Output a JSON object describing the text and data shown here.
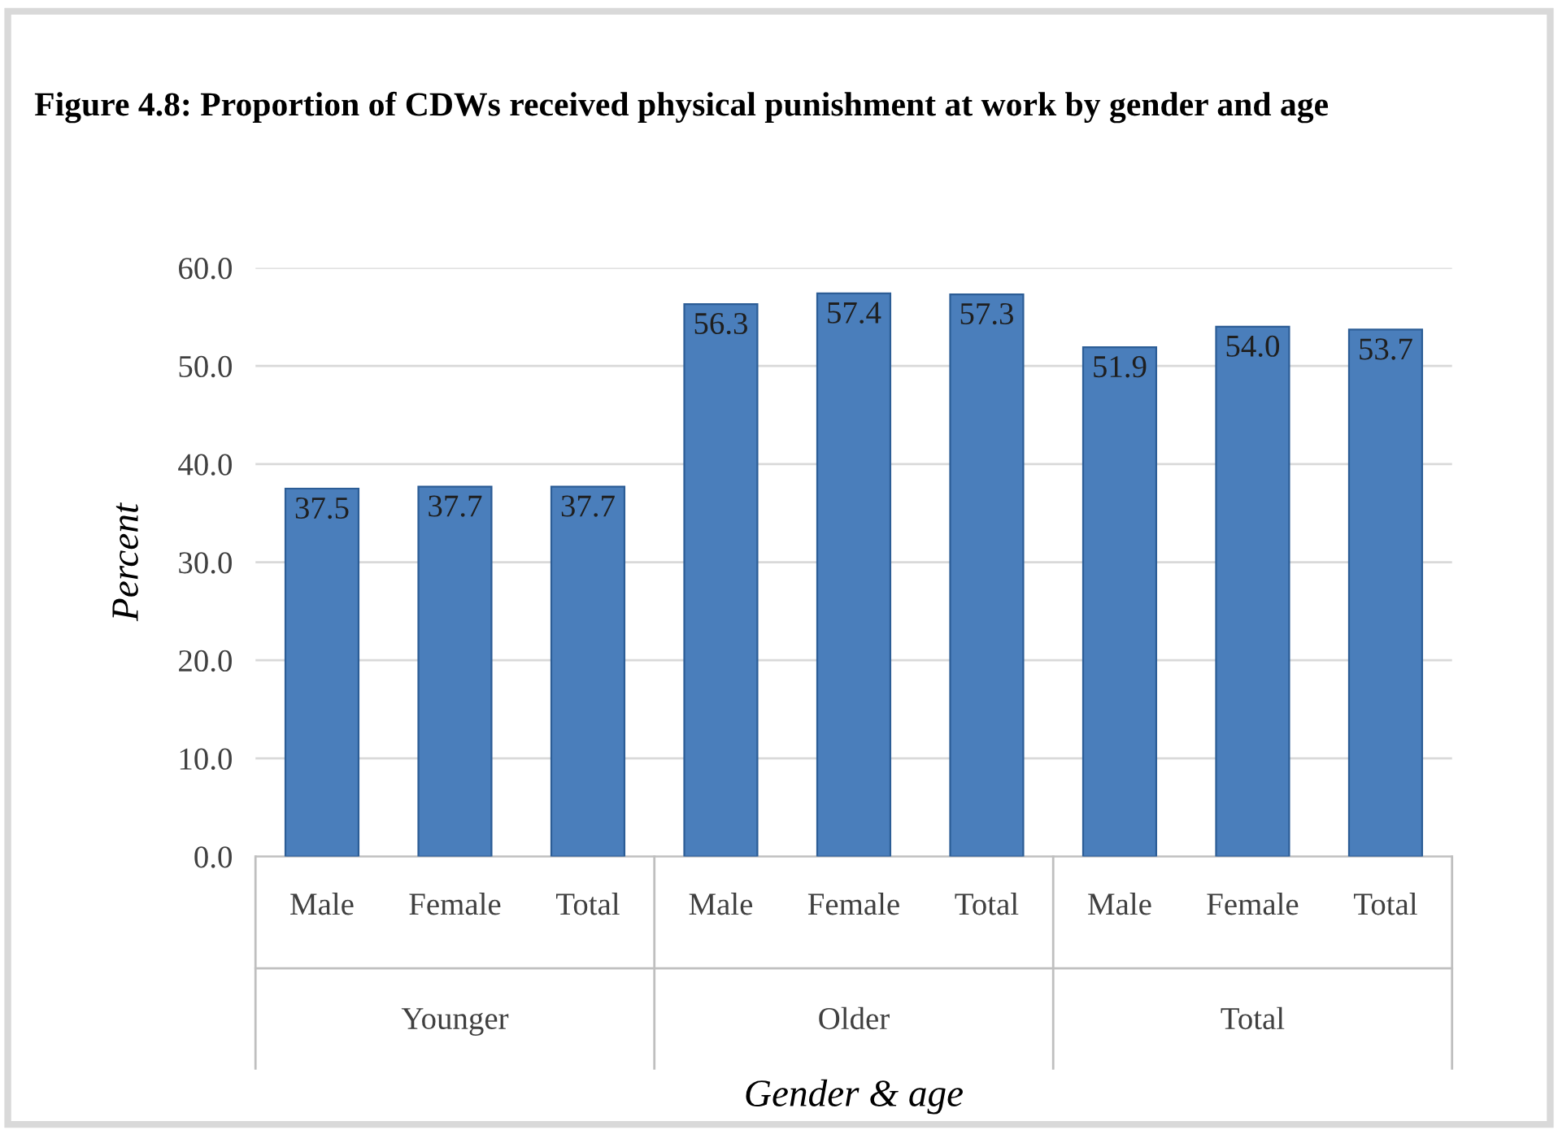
{
  "chart_data": {
    "type": "bar",
    "title": "Figure 4.8: Proportion of CDWs received physical punishment at work by gender and age",
    "xlabel": "Gender & age",
    "ylabel": "Percent",
    "categories": [
      "Male",
      "Female",
      "Total",
      "Male",
      "Female",
      "Total",
      "Male",
      "Female",
      "Total"
    ],
    "values": [
      37.5,
      37.7,
      37.7,
      56.3,
      57.4,
      57.3,
      51.9,
      54.0,
      53.7
    ],
    "value_labels": [
      "37.5",
      "37.7",
      "37.7",
      "56.3",
      "57.4",
      "57.3",
      "51.9",
      "54.0",
      "53.7"
    ],
    "color": "#4a7ebb",
    "annotations": [
      "Younger",
      "Older",
      "Total"
    ],
    "ylim": [
      0,
      60
    ],
    "yticks": [
      {
        "value": 0,
        "label": "0.0"
      },
      {
        "value": 10,
        "label": "10.0"
      },
      {
        "value": 20,
        "label": "20.0"
      },
      {
        "value": 30,
        "label": "30.0"
      },
      {
        "value": 40,
        "label": "40.0"
      },
      {
        "value": 50,
        "label": "50.0"
      },
      {
        "value": 60,
        "label": "60.0"
      }
    ],
    "grid": "y",
    "legend": false
  }
}
